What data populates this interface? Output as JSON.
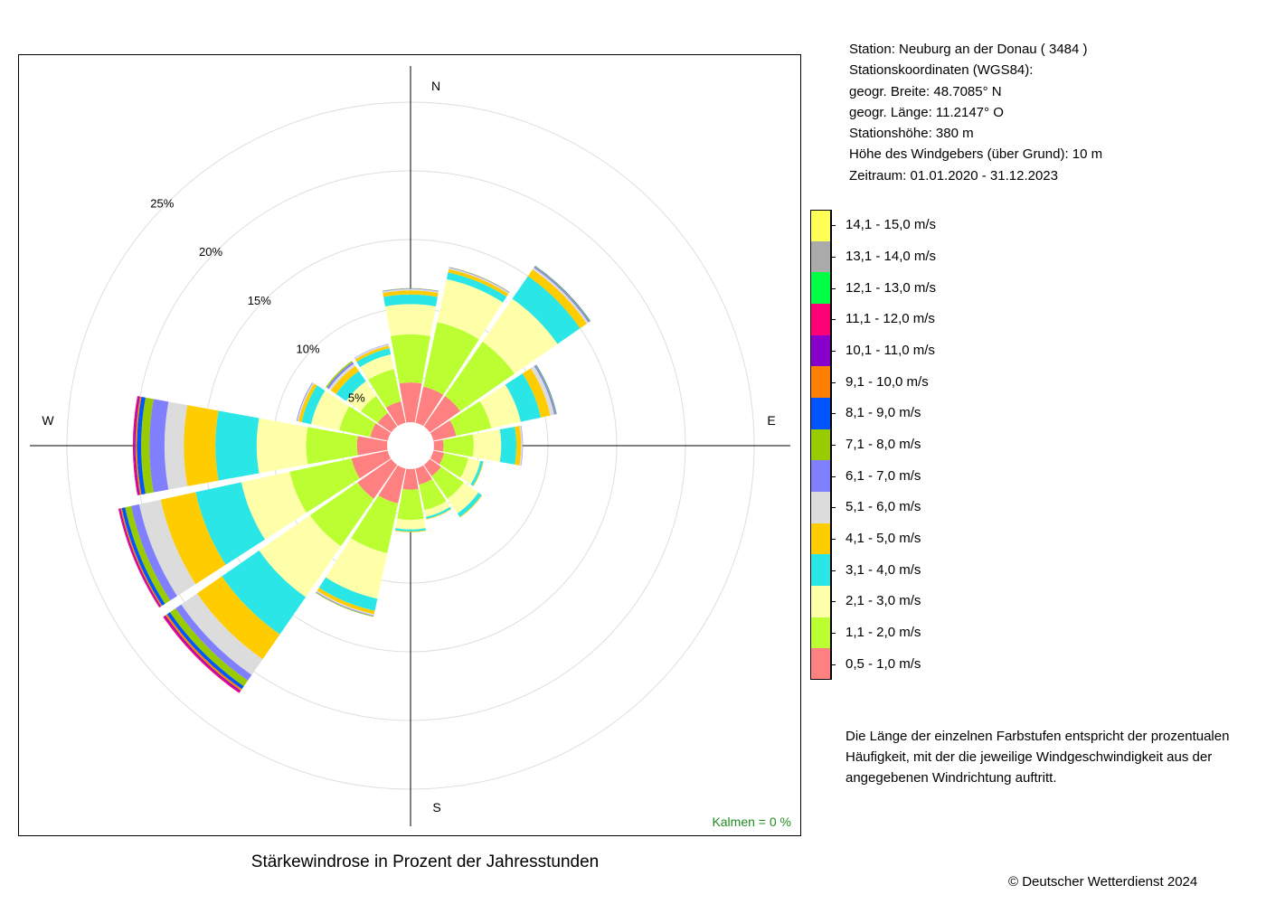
{
  "station_info": [
    "Station:  Neuburg an der Donau  ( 3484 )",
    "Stationskoordinaten (WGS84):",
    "geogr. Breite: 48.7085° N",
    "geogr. Länge: 11.2147° O",
    "Stationshöhe: 380 m",
    "Höhe des Windgebers (über Grund): 10 m",
    "Zeitraum: 01.01.2020 - 31.12.2023"
  ],
  "note": [
    "Die Länge der einzelnen Farbstufen entspricht der prozentualen",
    "Häufigkeit, mit der die jeweilige Windgeschwindigkeit aus der",
    "angegebenen Windrichtung auftritt."
  ],
  "copyright": "© Deutscher Wetterdienst  2024",
  "chart_data": {
    "type": "polar-stacked-bar",
    "title": "Stärkewindrose in Prozent der Jahresstunden",
    "directions": [
      "N",
      "NNE",
      "NE",
      "ENE",
      "E",
      "ESE",
      "SE",
      "SSE",
      "S",
      "SSW",
      "SW",
      "WSW",
      "W",
      "WNW",
      "NW",
      "NNW"
    ],
    "compass_labels": {
      "N": "N",
      "E": "E",
      "S": "S",
      "W": "W"
    },
    "ring_labels": [
      "5%",
      "10%",
      "15%",
      "20%",
      "25%"
    ],
    "rings": [
      5,
      10,
      15,
      20,
      25
    ],
    "calm_label": "Kalmen  =  0 %",
    "inner_radius_percent": 1.7,
    "classes": [
      {
        "label": "0,5 - 1,0 m/s",
        "color": "#ff8080"
      },
      {
        "label": "1,1 - 2,0 m/s",
        "color": "#bbff33"
      },
      {
        "label": "2,1 - 3,0 m/s",
        "color": "#ffffaa"
      },
      {
        "label": "3,1 - 4,0 m/s",
        "color": "#2ae6e6"
      },
      {
        "label": "4,1 - 5,0 m/s",
        "color": "#ffcc00"
      },
      {
        "label": "5,1 - 6,0 m/s",
        "color": "#dcdcdc"
      },
      {
        "label": "6,1 - 7,0 m/s",
        "color": "#8080ff"
      },
      {
        "label": "7,1 - 8,0 m/s",
        "color": "#99cc00"
      },
      {
        "label": "8,1 - 9,0 m/s",
        "color": "#0055ff"
      },
      {
        "label": "9,1 - 10,0 m/s",
        "color": "#ff8000"
      },
      {
        "label": "10,1 - 11,0 m/s",
        "color": "#8800cc"
      },
      {
        "label": "11,1 - 12,0 m/s",
        "color": "#ff0077"
      },
      {
        "label": "12,1 - 13,0 m/s",
        "color": "#00ff44"
      },
      {
        "label": "13,1 - 14,0 m/s",
        "color": "#aaaaaa"
      },
      {
        "label": "14,1 - 15,0 m/s",
        "color": "#ffff55"
      }
    ],
    "segments": [
      [
        2.9,
        3.5,
        2.2,
        0.7,
        0.3,
        0.1,
        0.04,
        0.02,
        0,
        0,
        0,
        0,
        0,
        0,
        0
      ],
      [
        2.7,
        4.8,
        3.2,
        0.5,
        0.25,
        0.1,
        0.04,
        0.02,
        0,
        0,
        0,
        0,
        0,
        0,
        0
      ],
      [
        2.7,
        4.8,
        3.8,
        2.0,
        0.6,
        0.15,
        0.1,
        0.05,
        0.03,
        0,
        0,
        0,
        0,
        0,
        0
      ],
      [
        1.7,
        2.6,
        2.2,
        1.5,
        0.7,
        0.3,
        0.1,
        0.05,
        0.03,
        0,
        0,
        0,
        0,
        0,
        0
      ],
      [
        0.7,
        2.2,
        2.0,
        1.1,
        0.35,
        0.1,
        0.03,
        0,
        0,
        0,
        0,
        0,
        0,
        0,
        0
      ],
      [
        0.8,
        1.8,
        0.9,
        0.2,
        0.05,
        0,
        0,
        0,
        0,
        0,
        0,
        0,
        0,
        0,
        0
      ],
      [
        1.0,
        2.0,
        1.3,
        0.3,
        0.05,
        0,
        0,
        0,
        0,
        0,
        0,
        0,
        0,
        0,
        0
      ],
      [
        1.2,
        1.9,
        0.5,
        0.15,
        0.05,
        0,
        0,
        0,
        0,
        0,
        0,
        0,
        0,
        0,
        0
      ],
      [
        1.5,
        2.2,
        0.7,
        0.15,
        0.05,
        0,
        0,
        0,
        0,
        0,
        0,
        0,
        0,
        0,
        0
      ],
      [
        2.6,
        3.7,
        3.4,
        0.9,
        0.25,
        0.1,
        0.05,
        0.05,
        0,
        0,
        0,
        0,
        0,
        0,
        0
      ],
      [
        3.0,
        4.2,
        4.5,
        3.3,
        2.2,
        1.4,
        0.5,
        0.5,
        0.25,
        0.15,
        0.1,
        0.1,
        0,
        0,
        0
      ],
      [
        2.7,
        4.6,
        3.6,
        3.4,
        2.6,
        1.6,
        0.6,
        0.45,
        0.25,
        0.1,
        0.08,
        0.07,
        0,
        0,
        0
      ],
      [
        2.2,
        3.7,
        3.6,
        3.0,
        2.3,
        1.4,
        1.1,
        0.6,
        0.3,
        0.12,
        0.1,
        0.08,
        0,
        0,
        0
      ],
      [
        1.3,
        2.3,
        2.1,
        0.7,
        0.25,
        0.1,
        0.05,
        0,
        0,
        0,
        0,
        0,
        0,
        0,
        0
      ],
      [
        1.2,
        1.5,
        1.3,
        0.9,
        0.45,
        0.2,
        0.15,
        0.1,
        0,
        0,
        0,
        0,
        0,
        0,
        0
      ],
      [
        1.6,
        2.4,
        1.1,
        0.45,
        0.2,
        0.1,
        0.03,
        0,
        0,
        0,
        0,
        0,
        0,
        0,
        0
      ]
    ]
  }
}
